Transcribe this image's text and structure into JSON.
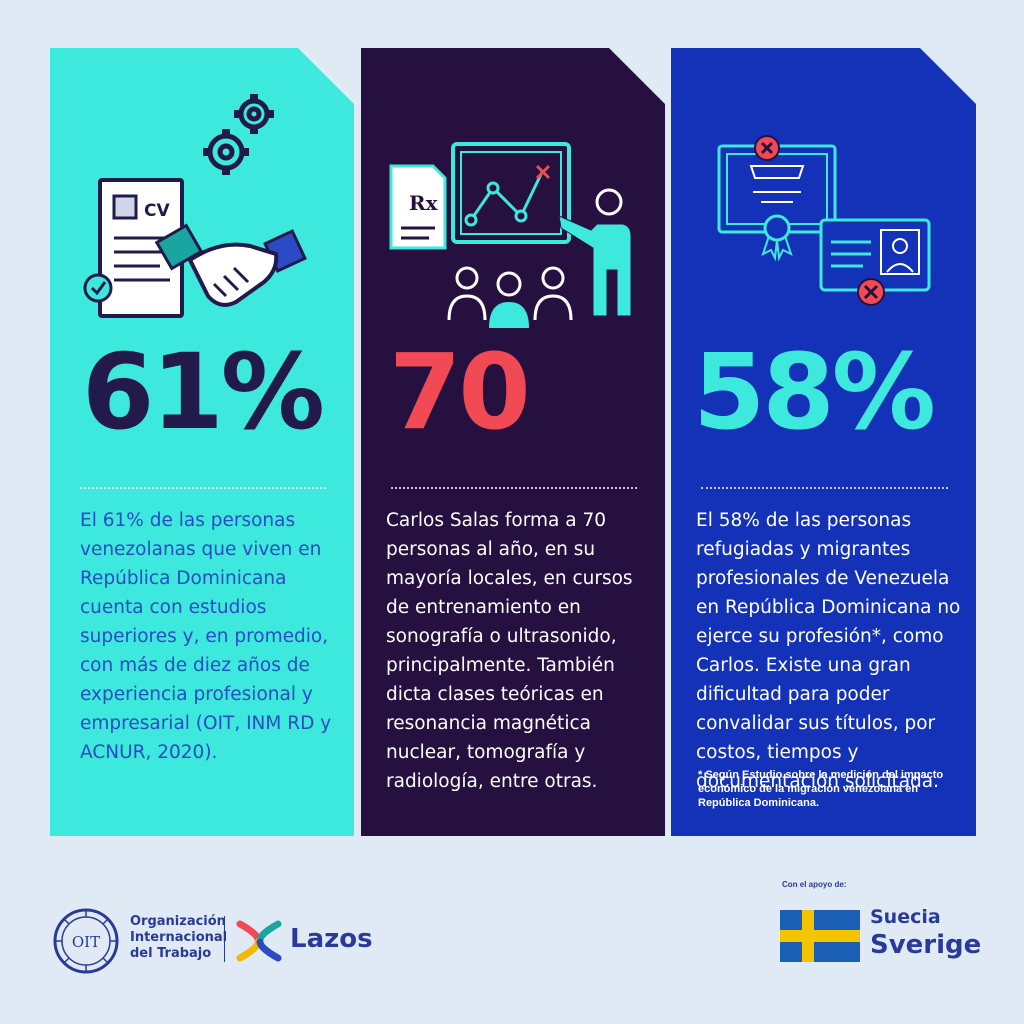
{
  "cards": [
    {
      "stat": "61%",
      "text": "El 61% de las personas venezolanas que viven en República Dominicana cuenta con estudios superiores y, en promedio, con más de diez años de experiencia profesional y empresarial (OIT, INM RD y ACNUR, 2020).",
      "cv_label": "CV"
    },
    {
      "stat": "70",
      "text": "Carlos Salas forma a 70 personas al año, en su mayoría locales, en cursos de entrenamiento en sonografía o ultrasonido, principalmente. También dicta clases teóricas en resonancia magnética nuclear, tomografía y radiología, entre otras.",
      "rx_label": "Rx"
    },
    {
      "stat": "58%",
      "text": "El 58% de las personas refugiadas y migrantes profesionales de Venezuela en República Dominicana no ejerce su profesión*, como Carlos. Existe una gran dificultad para poder convalidar sus títulos, por costos, tiempos y documentación solicitada.",
      "footnote": "* Según Estudio sobre la medición del impacto económico de la migración venezolana en República Dominicana."
    }
  ],
  "footer": {
    "oit_name": "Organización Internacional del Trabajo",
    "oit_emblem_text": "OIT",
    "lazos_name": "Lazos",
    "support_label": "Con el apoyo de:",
    "suecia": "Suecia",
    "sverige": "Sverige"
  },
  "colors": {
    "card1_bg": "#3de8dc",
    "card2_bg": "#261040",
    "card3_bg": "#1432b8",
    "stat2": "#f24a55",
    "navy": "#221a4a"
  }
}
